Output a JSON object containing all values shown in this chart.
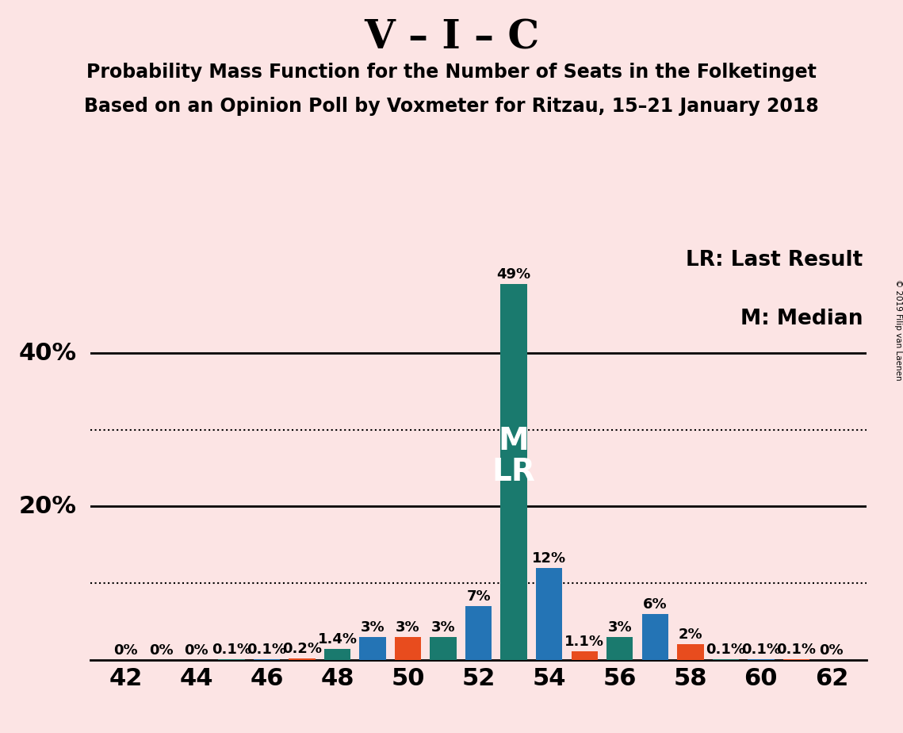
{
  "title": "V – I – C",
  "subtitle1": "Probability Mass Function for the Number of Seats in the Folketinget",
  "subtitle2": "Based on an Opinion Poll by Voxmeter for Ritzau, 15–21 January 2018",
  "copyright": "© 2019 Filip van Laenen",
  "legend_lr": "LR: Last Result",
  "legend_m": "M: Median",
  "background_color": "#fce4e4",
  "bar_data": [
    {
      "seat": 42,
      "value": 0.0,
      "color": "#1a7a6e"
    },
    {
      "seat": 43,
      "value": 0.0,
      "color": "#2474b5"
    },
    {
      "seat": 44,
      "value": 0.0,
      "color": "#e84c1e"
    },
    {
      "seat": 45,
      "value": 0.001,
      "color": "#1a7a6e"
    },
    {
      "seat": 46,
      "value": 0.001,
      "color": "#2474b5"
    },
    {
      "seat": 47,
      "value": 0.002,
      "color": "#e84c1e"
    },
    {
      "seat": 48,
      "value": 0.014,
      "color": "#1a7a6e"
    },
    {
      "seat": 49,
      "value": 0.03,
      "color": "#2474b5"
    },
    {
      "seat": 50,
      "value": 0.03,
      "color": "#e84c1e"
    },
    {
      "seat": 51,
      "value": 0.03,
      "color": "#1a7a6e"
    },
    {
      "seat": 52,
      "value": 0.07,
      "color": "#2474b5"
    },
    {
      "seat": 53,
      "value": 0.49,
      "color": "#1a7a6e"
    },
    {
      "seat": 54,
      "value": 0.12,
      "color": "#2474b5"
    },
    {
      "seat": 55,
      "value": 0.011,
      "color": "#e84c1e"
    },
    {
      "seat": 56,
      "value": 0.03,
      "color": "#1a7a6e"
    },
    {
      "seat": 57,
      "value": 0.06,
      "color": "#2474b5"
    },
    {
      "seat": 58,
      "value": 0.02,
      "color": "#e84c1e"
    },
    {
      "seat": 59,
      "value": 0.001,
      "color": "#1a7a6e"
    },
    {
      "seat": 60,
      "value": 0.001,
      "color": "#2474b5"
    },
    {
      "seat": 61,
      "value": 0.001,
      "color": "#e84c1e"
    },
    {
      "seat": 62,
      "value": 0.0,
      "color": "#1a7a6e"
    }
  ],
  "bar_labels": {
    "42": "0%",
    "43": "0%",
    "44": "0%",
    "45": "0.1%",
    "46": "0.1%",
    "47": "0.2%",
    "48": "1.4%",
    "49": "3%",
    "50": "3%",
    "51": "3%",
    "52": "7%",
    "53": "49%",
    "54": "12%",
    "55": "1.1%",
    "56": "3%",
    "57": "6%",
    "58": "2%",
    "59": "0.1%",
    "60": "0.1%",
    "61": "0.1%",
    "62": "0%"
  },
  "median": 53,
  "last_result": 53,
  "xlim": [
    41,
    63
  ],
  "ylim": [
    0,
    0.545
  ],
  "xticks": [
    42,
    44,
    46,
    48,
    50,
    52,
    54,
    56,
    58,
    60,
    62
  ],
  "dotted_lines": [
    0.1,
    0.3
  ],
  "solid_lines": [
    0.2,
    0.4
  ],
  "title_fontsize": 36,
  "subtitle_fontsize": 17,
  "tick_fontsize": 22,
  "bar_label_fontsize": 13,
  "legend_fontsize": 19,
  "ylabel_fontsize": 22,
  "ml_fontsize": 28
}
